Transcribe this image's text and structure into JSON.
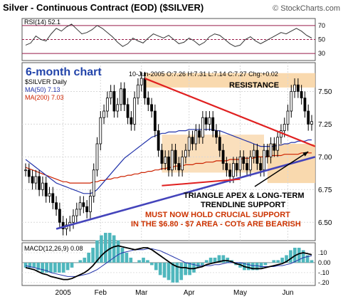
{
  "header": {
    "title": "Silver - Continuous Contract (EOD) ($SILVER)",
    "credit": "© StockCharts.com"
  },
  "colors": {
    "price": "#000000",
    "ma50": "#2233aa",
    "ma200": "#cc2200",
    "resistance_line": "#e02020",
    "trend_line": "#4444bb",
    "zone": "#f8d2a0",
    "rsi_line": "#333333",
    "rsi_bounds": "#991a4a",
    "annotation_orange": "#cc3300",
    "chart_label": "#2244aa",
    "macd_hist": "#4fb7bd"
  },
  "chart_data": [
    {
      "type": "line",
      "panel": "RSI",
      "legend": "RSI(14) 52.1",
      "y_ticks": [
        "70",
        "50",
        "30"
      ],
      "ylim": [
        20,
        80
      ],
      "levels": [
        70,
        50,
        30
      ],
      "values": [
        42,
        45,
        55,
        50,
        48,
        58,
        66,
        62,
        68,
        72,
        65,
        58,
        60,
        64,
        70,
        66,
        60,
        54,
        46,
        40,
        44,
        52,
        48,
        45,
        52,
        58,
        55,
        52,
        56,
        50,
        44,
        46,
        52,
        48,
        42,
        46,
        54,
        58,
        56,
        50,
        44,
        40,
        42,
        50,
        54,
        48,
        44,
        48,
        52,
        56,
        60,
        58,
        62,
        66,
        62,
        56,
        52
      ]
    },
    {
      "type": "candlestick",
      "panel": "price",
      "label": "6-month chart",
      "legend_symbol": "$SILVER Daily",
      "legend_ma50": "MA(50) 7.13",
      "legend_ma200": "MA(200) 7.03",
      "info": "10-Jun-2005 O:7.26 H:7.31 L:7.14 C:7.27 Chg:+0.02",
      "y_ticks": [
        "7.50",
        "7.25",
        "7.00",
        "6.75",
        "6.50"
      ],
      "ylim": [
        6.36,
        7.72
      ],
      "x_ticks": [
        "2005",
        "Feb",
        "Mar",
        "Apr",
        "May",
        "Jun"
      ],
      "x_tick_index": [
        11,
        22,
        34,
        48,
        63,
        77
      ],
      "n_points": 85,
      "close": [
        6.9,
        6.85,
        6.8,
        6.85,
        6.75,
        6.8,
        6.7,
        6.72,
        6.65,
        6.6,
        6.5,
        6.45,
        6.48,
        6.5,
        6.55,
        6.6,
        6.65,
        6.62,
        6.58,
        6.7,
        6.9,
        7.1,
        7.3,
        7.35,
        7.45,
        7.5,
        7.35,
        7.4,
        7.52,
        7.4,
        7.3,
        7.25,
        7.45,
        7.55,
        7.6,
        7.45,
        7.4,
        7.35,
        7.2,
        7.05,
        6.95,
        7.0,
        6.9,
        7.05,
        6.95,
        6.9,
        7.0,
        7.05,
        7.15,
        7.1,
        7.2,
        7.15,
        7.3,
        7.25,
        7.3,
        7.2,
        7.15,
        7.05,
        6.95,
        6.9,
        6.85,
        6.95,
        6.9,
        7.0,
        6.95,
        6.9,
        7.0,
        7.05,
        6.95,
        6.9,
        7.05,
        7.0,
        7.1,
        7.05,
        7.15,
        7.2,
        7.25,
        7.35,
        7.5,
        7.55,
        7.5,
        7.45,
        7.35,
        7.25,
        7.27
      ],
      "ma50": [
        6.98,
        6.96,
        6.94,
        6.92,
        6.9,
        6.88,
        6.86,
        6.84,
        6.82,
        6.8,
        6.79,
        6.78,
        6.77,
        6.76,
        6.75,
        6.74,
        6.73,
        6.72,
        6.72,
        6.72,
        6.73,
        6.75,
        6.78,
        6.81,
        6.84,
        6.87,
        6.9,
        6.93,
        6.96,
        6.99,
        7.01,
        7.03,
        7.05,
        7.07,
        7.09,
        7.11,
        7.13,
        7.15,
        7.16,
        7.17,
        7.18,
        7.18,
        7.19,
        7.19,
        7.19,
        7.2,
        7.2,
        7.2,
        7.21,
        7.21,
        7.21,
        7.21,
        7.21,
        7.21,
        7.21,
        7.21,
        7.2,
        7.2,
        7.19,
        7.18,
        7.17,
        7.16,
        7.15,
        7.14,
        7.13,
        7.12,
        7.11,
        7.1,
        7.09,
        7.08,
        7.08,
        7.08,
        7.08,
        7.08,
        7.09,
        7.09,
        7.1,
        7.1,
        7.11,
        7.11,
        7.12,
        7.12,
        7.12,
        7.13,
        7.13
      ],
      "ma200": [
        6.92,
        6.91,
        6.9,
        6.89,
        6.88,
        6.87,
        6.86,
        6.85,
        6.84,
        6.83,
        6.82,
        6.81,
        6.81,
        6.8,
        6.8,
        6.8,
        6.8,
        6.8,
        6.8,
        6.8,
        6.81,
        6.81,
        6.82,
        6.82,
        6.83,
        6.83,
        6.84,
        6.84,
        6.85,
        6.85,
        6.86,
        6.86,
        6.87,
        6.87,
        6.88,
        6.88,
        6.89,
        6.89,
        6.9,
        6.9,
        6.91,
        6.91,
        6.92,
        6.92,
        6.93,
        6.93,
        6.93,
        6.94,
        6.94,
        6.94,
        6.95,
        6.95,
        6.95,
        6.96,
        6.96,
        6.96,
        6.97,
        6.97,
        6.97,
        6.97,
        6.98,
        6.98,
        6.98,
        6.98,
        6.99,
        6.99,
        6.99,
        6.99,
        7.0,
        7.0,
        7.0,
        7.0,
        7.01,
        7.01,
        7.01,
        7.01,
        7.02,
        7.02,
        7.02,
        7.02,
        7.02,
        7.03,
        7.03,
        7.03,
        7.03
      ],
      "resistance_zone": [
        7.53,
        7.64
      ],
      "support_zone": [
        6.8,
        7.1
      ],
      "consolidation_zone": {
        "x": [
          40,
          70
        ],
        "y": [
          6.88,
          7.17
        ]
      },
      "resistance_line": {
        "x": [
          35,
          85
        ],
        "y": [
          7.6,
          7.08
        ]
      },
      "trend_line": {
        "x": [
          9,
          85
        ],
        "y": [
          6.45,
          7.0
        ]
      },
      "lower_triangle_line": {
        "x": [
          40,
          63
        ],
        "y": [
          6.78,
          6.83
        ]
      },
      "annotations": {
        "resistance": "RESISTANCE",
        "apex_line1": "TRIANGLE APEX & LONG-TERM",
        "apex_line2": "TRENDLINE SUPPORT",
        "support_line1": "MUST NOW HOLD CRUCIAL SUPPORT",
        "support_line2": "IN THE $6.80 - $7 AREA - COTs ARE BEARISH"
      }
    },
    {
      "type": "line",
      "panel": "MACD",
      "legend": "MACD(12,26,9) 0.08",
      "y_ticks": [
        ".10",
        "0.00",
        "-.10",
        "-.20"
      ],
      "ylim": [
        -0.23,
        0.2
      ],
      "macd": [
        -0.05,
        -0.06,
        -0.07,
        -0.09,
        -0.11,
        -0.12,
        -0.14,
        -0.15,
        -0.16,
        -0.17,
        -0.17,
        -0.16,
        -0.14,
        -0.12,
        -0.1,
        -0.07,
        -0.03,
        0.02,
        0.07,
        0.11,
        0.14,
        0.16,
        0.17,
        0.16,
        0.15,
        0.14,
        0.13,
        0.14,
        0.15,
        0.15,
        0.13,
        0.1,
        0.07,
        0.04,
        0.01,
        -0.02,
        -0.04,
        -0.05,
        -0.05,
        -0.06,
        -0.06,
        -0.05,
        -0.04,
        -0.02,
        -0.01,
        0.0,
        0.01,
        0.02,
        0.02,
        0.01,
        -0.01,
        -0.02,
        -0.04,
        -0.05,
        -0.06,
        -0.06,
        -0.06,
        -0.05,
        -0.04,
        -0.03,
        -0.02,
        -0.01,
        0.01,
        0.04,
        0.07,
        0.09,
        0.1,
        0.09,
        0.08
      ],
      "signal": [
        -0.03,
        -0.04,
        -0.05,
        -0.06,
        -0.07,
        -0.08,
        -0.1,
        -0.11,
        -0.12,
        -0.13,
        -0.14,
        -0.14,
        -0.14,
        -0.13,
        -0.12,
        -0.11,
        -0.09,
        -0.07,
        -0.04,
        -0.01,
        0.02,
        0.05,
        0.08,
        0.1,
        0.11,
        0.12,
        0.13,
        0.13,
        0.13,
        0.14,
        0.14,
        0.13,
        0.12,
        0.1,
        0.08,
        0.06,
        0.04,
        0.02,
        0.0,
        -0.01,
        -0.02,
        -0.03,
        -0.03,
        -0.03,
        -0.03,
        -0.02,
        -0.02,
        -0.01,
        0.0,
        0.0,
        0.0,
        0.0,
        -0.01,
        -0.02,
        -0.03,
        -0.03,
        -0.04,
        -0.04,
        -0.04,
        -0.04,
        -0.03,
        -0.03,
        -0.02,
        -0.01,
        0.01,
        0.03,
        0.05,
        0.06,
        0.07
      ]
    }
  ]
}
